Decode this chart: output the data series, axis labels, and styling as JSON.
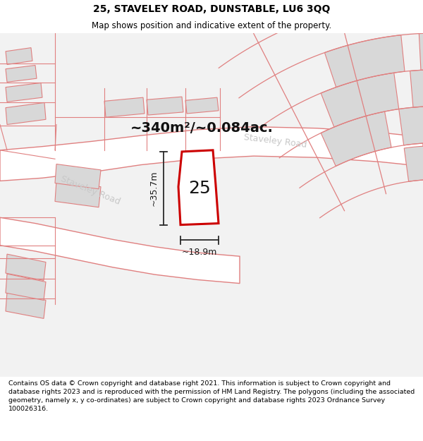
{
  "title_line1": "25, STAVELEY ROAD, DUNSTABLE, LU6 3QQ",
  "title_line2": "Map shows position and indicative extent of the property.",
  "footer_text": "Contains OS data © Crown copyright and database right 2021. This information is subject to Crown copyright and database rights 2023 and is reproduced with the permission of HM Land Registry. The polygons (including the associated geometry, namely x, y co-ordinates) are subject to Crown copyright and database rights 2023 Ordnance Survey 100026316.",
  "area_label": "~340m²/~0.084ac.",
  "width_label": "~18.9m",
  "height_label": "~35.7m",
  "plot_number": "25",
  "background_color": "#ffffff",
  "map_bg_color": "#f2f2f2",
  "road_fill_color": "#ffffff",
  "road_outline_color": "#e08080",
  "building_fill_color": "#d8d8d8",
  "highlight_fill_color": "#ffffff",
  "highlight_outline_color": "#cc0000",
  "road_label_color": "#c8c8c8",
  "road_label_fontsize": 9,
  "title_fontsize": 10,
  "subtitle_fontsize": 8.5,
  "footer_fontsize": 6.8,
  "area_label_fontsize": 14,
  "plot_number_fontsize": 18,
  "dim_fontsize": 9
}
